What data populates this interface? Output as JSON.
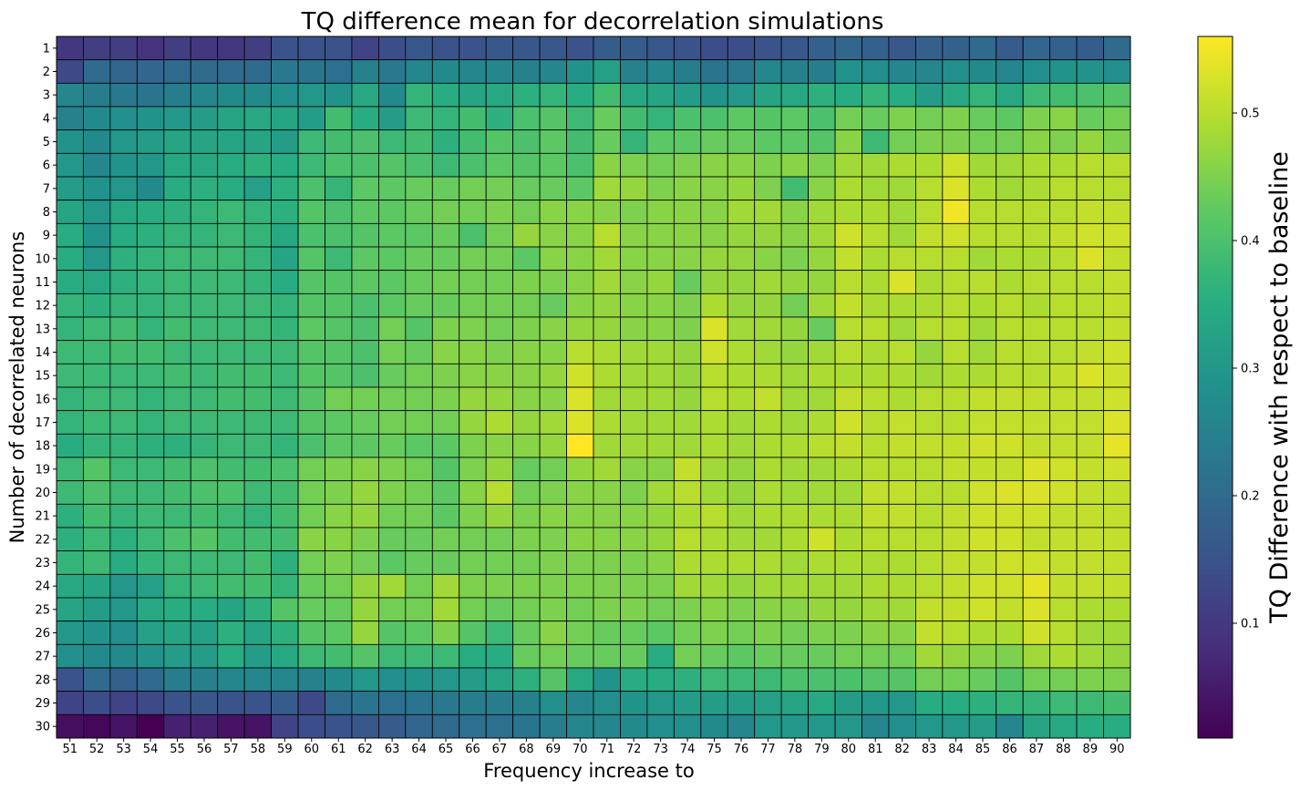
{
  "chart_data": {
    "type": "heatmap",
    "title": "TQ difference mean for decorrelation simulations",
    "xlabel": "Frequency increase to",
    "ylabel": "Number of decorrelated neurons",
    "colorbar_label": "TQ Difference with respect to baseline",
    "colormap": "viridis",
    "clim": [
      0.01,
      0.56
    ],
    "colorbar_ticks": [
      "0.1",
      "0.2",
      "0.3",
      "0.4",
      "0.5"
    ],
    "colorbar_tick_values": [
      0.1,
      0.2,
      0.3,
      0.4,
      0.5
    ],
    "x": [
      51,
      52,
      53,
      54,
      55,
      56,
      57,
      58,
      59,
      60,
      61,
      62,
      63,
      64,
      65,
      66,
      67,
      68,
      69,
      70,
      71,
      72,
      73,
      74,
      75,
      76,
      77,
      78,
      79,
      80,
      81,
      82,
      83,
      84,
      85,
      86,
      87,
      88,
      89,
      90
    ],
    "y": [
      1,
      2,
      3,
      4,
      5,
      6,
      7,
      8,
      9,
      10,
      11,
      12,
      13,
      14,
      15,
      16,
      17,
      18,
      19,
      20,
      21,
      22,
      23,
      24,
      25,
      26,
      27,
      28,
      29,
      30
    ],
    "values": [
      [
        0.1,
        0.11,
        0.11,
        0.09,
        0.11,
        0.1,
        0.1,
        0.11,
        0.15,
        0.15,
        0.15,
        0.12,
        0.14,
        0.16,
        0.15,
        0.15,
        0.16,
        0.16,
        0.16,
        0.15,
        0.17,
        0.17,
        0.16,
        0.15,
        0.14,
        0.14,
        0.15,
        0.16,
        0.18,
        0.19,
        0.18,
        0.16,
        0.18,
        0.18,
        0.2,
        0.17,
        0.19,
        0.18,
        0.17,
        0.2
      ],
      [
        0.13,
        0.2,
        0.19,
        0.19,
        0.2,
        0.2,
        0.2,
        0.2,
        0.23,
        0.22,
        0.21,
        0.25,
        0.23,
        0.26,
        0.27,
        0.26,
        0.26,
        0.25,
        0.26,
        0.29,
        0.32,
        0.25,
        0.26,
        0.24,
        0.22,
        0.23,
        0.26,
        0.25,
        0.24,
        0.29,
        0.28,
        0.26,
        0.26,
        0.28,
        0.27,
        0.26,
        0.28,
        0.29,
        0.29,
        0.28
      ],
      [
        0.26,
        0.24,
        0.23,
        0.22,
        0.24,
        0.26,
        0.27,
        0.27,
        0.28,
        0.3,
        0.29,
        0.34,
        0.27,
        0.37,
        0.35,
        0.33,
        0.34,
        0.36,
        0.37,
        0.35,
        0.39,
        0.34,
        0.33,
        0.31,
        0.29,
        0.3,
        0.33,
        0.34,
        0.36,
        0.35,
        0.37,
        0.35,
        0.31,
        0.34,
        0.37,
        0.34,
        0.38,
        0.39,
        0.4,
        0.41
      ],
      [
        0.25,
        0.27,
        0.28,
        0.29,
        0.3,
        0.31,
        0.33,
        0.34,
        0.33,
        0.31,
        0.39,
        0.35,
        0.31,
        0.38,
        0.37,
        0.39,
        0.36,
        0.4,
        0.41,
        0.38,
        0.43,
        0.39,
        0.37,
        0.4,
        0.4,
        0.42,
        0.41,
        0.42,
        0.4,
        0.44,
        0.43,
        0.45,
        0.44,
        0.45,
        0.43,
        0.42,
        0.45,
        0.46,
        0.43,
        0.44
      ],
      [
        0.29,
        0.27,
        0.3,
        0.31,
        0.33,
        0.33,
        0.33,
        0.33,
        0.31,
        0.38,
        0.39,
        0.4,
        0.38,
        0.39,
        0.36,
        0.39,
        0.41,
        0.4,
        0.42,
        0.39,
        0.43,
        0.37,
        0.42,
        0.42,
        0.43,
        0.43,
        0.42,
        0.42,
        0.41,
        0.46,
        0.38,
        0.44,
        0.45,
        0.45,
        0.44,
        0.44,
        0.46,
        0.45,
        0.47,
        0.45
      ],
      [
        0.3,
        0.26,
        0.29,
        0.3,
        0.34,
        0.34,
        0.35,
        0.36,
        0.35,
        0.38,
        0.4,
        0.4,
        0.41,
        0.4,
        0.38,
        0.4,
        0.42,
        0.41,
        0.42,
        0.4,
        0.46,
        0.45,
        0.44,
        0.45,
        0.46,
        0.46,
        0.45,
        0.46,
        0.45,
        0.48,
        0.48,
        0.49,
        0.49,
        0.52,
        0.48,
        0.48,
        0.49,
        0.49,
        0.5,
        0.5
      ],
      [
        0.31,
        0.29,
        0.3,
        0.27,
        0.35,
        0.36,
        0.35,
        0.32,
        0.36,
        0.4,
        0.37,
        0.42,
        0.42,
        0.43,
        0.43,
        0.44,
        0.44,
        0.43,
        0.43,
        0.42,
        0.48,
        0.47,
        0.45,
        0.46,
        0.46,
        0.47,
        0.45,
        0.39,
        0.46,
        0.49,
        0.48,
        0.48,
        0.5,
        0.53,
        0.49,
        0.48,
        0.49,
        0.5,
        0.5,
        0.5
      ],
      [
        0.33,
        0.3,
        0.34,
        0.35,
        0.36,
        0.37,
        0.38,
        0.37,
        0.36,
        0.41,
        0.4,
        0.42,
        0.42,
        0.43,
        0.44,
        0.44,
        0.45,
        0.44,
        0.46,
        0.46,
        0.46,
        0.45,
        0.46,
        0.46,
        0.46,
        0.48,
        0.48,
        0.46,
        0.48,
        0.49,
        0.49,
        0.48,
        0.5,
        0.55,
        0.5,
        0.5,
        0.5,
        0.5,
        0.51,
        0.51
      ],
      [
        0.35,
        0.29,
        0.35,
        0.36,
        0.37,
        0.37,
        0.38,
        0.37,
        0.34,
        0.4,
        0.4,
        0.41,
        0.42,
        0.42,
        0.43,
        0.4,
        0.44,
        0.47,
        0.46,
        0.46,
        0.5,
        0.46,
        0.46,
        0.46,
        0.46,
        0.47,
        0.47,
        0.46,
        0.48,
        0.52,
        0.5,
        0.48,
        0.51,
        0.52,
        0.5,
        0.5,
        0.5,
        0.51,
        0.52,
        0.52
      ],
      [
        0.35,
        0.3,
        0.36,
        0.37,
        0.38,
        0.38,
        0.38,
        0.37,
        0.33,
        0.41,
        0.38,
        0.42,
        0.42,
        0.43,
        0.43,
        0.44,
        0.44,
        0.42,
        0.46,
        0.46,
        0.48,
        0.46,
        0.46,
        0.46,
        0.47,
        0.47,
        0.46,
        0.45,
        0.47,
        0.51,
        0.49,
        0.5,
        0.5,
        0.5,
        0.48,
        0.49,
        0.49,
        0.5,
        0.53,
        0.51
      ],
      [
        0.35,
        0.34,
        0.36,
        0.37,
        0.38,
        0.38,
        0.38,
        0.37,
        0.35,
        0.41,
        0.41,
        0.42,
        0.42,
        0.43,
        0.44,
        0.44,
        0.44,
        0.45,
        0.45,
        0.46,
        0.48,
        0.46,
        0.47,
        0.43,
        0.47,
        0.47,
        0.48,
        0.47,
        0.47,
        0.5,
        0.49,
        0.53,
        0.49,
        0.5,
        0.5,
        0.49,
        0.5,
        0.5,
        0.5,
        0.51
      ],
      [
        0.37,
        0.36,
        0.37,
        0.37,
        0.38,
        0.38,
        0.38,
        0.38,
        0.37,
        0.41,
        0.41,
        0.4,
        0.42,
        0.43,
        0.43,
        0.44,
        0.44,
        0.44,
        0.43,
        0.46,
        0.47,
        0.46,
        0.46,
        0.45,
        0.49,
        0.47,
        0.47,
        0.44,
        0.48,
        0.51,
        0.49,
        0.49,
        0.49,
        0.5,
        0.49,
        0.5,
        0.49,
        0.5,
        0.5,
        0.51
      ],
      [
        0.37,
        0.38,
        0.39,
        0.37,
        0.39,
        0.38,
        0.38,
        0.38,
        0.37,
        0.42,
        0.41,
        0.4,
        0.44,
        0.41,
        0.45,
        0.45,
        0.44,
        0.45,
        0.46,
        0.47,
        0.47,
        0.46,
        0.46,
        0.45,
        0.53,
        0.48,
        0.48,
        0.47,
        0.43,
        0.5,
        0.5,
        0.48,
        0.5,
        0.5,
        0.48,
        0.5,
        0.5,
        0.5,
        0.5,
        0.51
      ],
      [
        0.38,
        0.38,
        0.39,
        0.39,
        0.38,
        0.38,
        0.38,
        0.38,
        0.38,
        0.41,
        0.41,
        0.4,
        0.44,
        0.43,
        0.46,
        0.46,
        0.45,
        0.46,
        0.46,
        0.5,
        0.49,
        0.48,
        0.48,
        0.47,
        0.52,
        0.49,
        0.48,
        0.47,
        0.48,
        0.5,
        0.49,
        0.5,
        0.47,
        0.5,
        0.48,
        0.5,
        0.5,
        0.5,
        0.51,
        0.52
      ],
      [
        0.38,
        0.38,
        0.38,
        0.38,
        0.39,
        0.38,
        0.39,
        0.39,
        0.38,
        0.41,
        0.41,
        0.4,
        0.43,
        0.44,
        0.45,
        0.46,
        0.46,
        0.46,
        0.47,
        0.52,
        0.49,
        0.48,
        0.48,
        0.47,
        0.5,
        0.49,
        0.49,
        0.48,
        0.49,
        0.49,
        0.49,
        0.49,
        0.48,
        0.49,
        0.49,
        0.5,
        0.5,
        0.51,
        0.53,
        0.52
      ],
      [
        0.37,
        0.38,
        0.38,
        0.37,
        0.38,
        0.38,
        0.39,
        0.39,
        0.38,
        0.41,
        0.44,
        0.44,
        0.44,
        0.44,
        0.45,
        0.47,
        0.47,
        0.46,
        0.46,
        0.53,
        0.48,
        0.48,
        0.48,
        0.47,
        0.5,
        0.49,
        0.51,
        0.48,
        0.48,
        0.51,
        0.5,
        0.49,
        0.5,
        0.5,
        0.51,
        0.51,
        0.51,
        0.51,
        0.51,
        0.52
      ],
      [
        0.37,
        0.38,
        0.38,
        0.37,
        0.38,
        0.38,
        0.38,
        0.38,
        0.38,
        0.41,
        0.42,
        0.43,
        0.44,
        0.44,
        0.44,
        0.47,
        0.49,
        0.47,
        0.48,
        0.53,
        0.49,
        0.48,
        0.48,
        0.48,
        0.49,
        0.48,
        0.49,
        0.48,
        0.49,
        0.52,
        0.5,
        0.51,
        0.5,
        0.5,
        0.51,
        0.51,
        0.51,
        0.51,
        0.51,
        0.53
      ],
      [
        0.35,
        0.37,
        0.37,
        0.36,
        0.36,
        0.37,
        0.38,
        0.38,
        0.37,
        0.4,
        0.42,
        0.42,
        0.43,
        0.42,
        0.42,
        0.45,
        0.46,
        0.46,
        0.47,
        0.56,
        0.48,
        0.48,
        0.48,
        0.48,
        0.49,
        0.48,
        0.49,
        0.49,
        0.5,
        0.51,
        0.5,
        0.51,
        0.51,
        0.51,
        0.52,
        0.52,
        0.51,
        0.51,
        0.51,
        0.54
      ],
      [
        0.38,
        0.41,
        0.38,
        0.38,
        0.39,
        0.4,
        0.39,
        0.39,
        0.4,
        0.44,
        0.45,
        0.46,
        0.45,
        0.44,
        0.41,
        0.45,
        0.47,
        0.43,
        0.44,
        0.47,
        0.48,
        0.46,
        0.46,
        0.51,
        0.48,
        0.47,
        0.49,
        0.48,
        0.48,
        0.49,
        0.5,
        0.5,
        0.5,
        0.51,
        0.51,
        0.51,
        0.53,
        0.52,
        0.51,
        0.52
      ],
      [
        0.38,
        0.4,
        0.38,
        0.38,
        0.39,
        0.4,
        0.4,
        0.38,
        0.39,
        0.44,
        0.45,
        0.47,
        0.45,
        0.44,
        0.42,
        0.46,
        0.5,
        0.44,
        0.45,
        0.46,
        0.46,
        0.45,
        0.48,
        0.5,
        0.48,
        0.47,
        0.49,
        0.48,
        0.48,
        0.48,
        0.51,
        0.51,
        0.5,
        0.5,
        0.52,
        0.53,
        0.53,
        0.52,
        0.51,
        0.51
      ],
      [
        0.36,
        0.39,
        0.37,
        0.38,
        0.38,
        0.39,
        0.38,
        0.37,
        0.39,
        0.44,
        0.46,
        0.47,
        0.44,
        0.44,
        0.42,
        0.45,
        0.47,
        0.45,
        0.46,
        0.46,
        0.46,
        0.46,
        0.47,
        0.49,
        0.5,
        0.48,
        0.49,
        0.49,
        0.49,
        0.49,
        0.51,
        0.51,
        0.5,
        0.51,
        0.52,
        0.52,
        0.52,
        0.51,
        0.51,
        0.51
      ],
      [
        0.36,
        0.38,
        0.36,
        0.38,
        0.4,
        0.41,
        0.39,
        0.39,
        0.39,
        0.46,
        0.46,
        0.45,
        0.43,
        0.43,
        0.44,
        0.44,
        0.44,
        0.45,
        0.45,
        0.46,
        0.46,
        0.46,
        0.47,
        0.5,
        0.49,
        0.48,
        0.48,
        0.49,
        0.52,
        0.49,
        0.5,
        0.5,
        0.5,
        0.51,
        0.52,
        0.52,
        0.51,
        0.51,
        0.51,
        0.51
      ],
      [
        0.37,
        0.38,
        0.35,
        0.37,
        0.38,
        0.38,
        0.38,
        0.39,
        0.36,
        0.44,
        0.45,
        0.44,
        0.42,
        0.43,
        0.43,
        0.44,
        0.44,
        0.44,
        0.45,
        0.45,
        0.45,
        0.45,
        0.46,
        0.49,
        0.49,
        0.49,
        0.49,
        0.48,
        0.49,
        0.49,
        0.49,
        0.49,
        0.5,
        0.51,
        0.51,
        0.52,
        0.52,
        0.51,
        0.51,
        0.51
      ],
      [
        0.34,
        0.33,
        0.3,
        0.32,
        0.37,
        0.38,
        0.39,
        0.39,
        0.37,
        0.43,
        0.44,
        0.47,
        0.48,
        0.44,
        0.48,
        0.45,
        0.45,
        0.45,
        0.45,
        0.45,
        0.45,
        0.45,
        0.45,
        0.48,
        0.48,
        0.47,
        0.48,
        0.48,
        0.48,
        0.48,
        0.49,
        0.49,
        0.5,
        0.51,
        0.52,
        0.52,
        0.54,
        0.51,
        0.51,
        0.51
      ],
      [
        0.33,
        0.31,
        0.3,
        0.34,
        0.35,
        0.35,
        0.33,
        0.36,
        0.41,
        0.43,
        0.43,
        0.47,
        0.44,
        0.44,
        0.48,
        0.44,
        0.43,
        0.44,
        0.45,
        0.44,
        0.45,
        0.45,
        0.44,
        0.45,
        0.46,
        0.45,
        0.46,
        0.46,
        0.47,
        0.47,
        0.48,
        0.48,
        0.51,
        0.51,
        0.52,
        0.51,
        0.53,
        0.5,
        0.49,
        0.49
      ],
      [
        0.3,
        0.29,
        0.28,
        0.32,
        0.33,
        0.32,
        0.36,
        0.33,
        0.36,
        0.41,
        0.42,
        0.47,
        0.41,
        0.42,
        0.45,
        0.41,
        0.38,
        0.43,
        0.46,
        0.44,
        0.43,
        0.43,
        0.42,
        0.44,
        0.45,
        0.44,
        0.45,
        0.44,
        0.45,
        0.45,
        0.46,
        0.46,
        0.51,
        0.5,
        0.49,
        0.49,
        0.52,
        0.5,
        0.48,
        0.48
      ],
      [
        0.28,
        0.27,
        0.27,
        0.29,
        0.31,
        0.31,
        0.35,
        0.31,
        0.34,
        0.38,
        0.39,
        0.41,
        0.38,
        0.38,
        0.38,
        0.35,
        0.35,
        0.43,
        0.44,
        0.43,
        0.43,
        0.43,
        0.35,
        0.44,
        0.43,
        0.42,
        0.43,
        0.43,
        0.43,
        0.44,
        0.44,
        0.44,
        0.48,
        0.47,
        0.46,
        0.45,
        0.48,
        0.49,
        0.48,
        0.47
      ],
      [
        0.15,
        0.2,
        0.18,
        0.2,
        0.24,
        0.25,
        0.26,
        0.26,
        0.26,
        0.25,
        0.27,
        0.3,
        0.28,
        0.29,
        0.3,
        0.31,
        0.33,
        0.36,
        0.41,
        0.34,
        0.29,
        0.35,
        0.35,
        0.36,
        0.38,
        0.38,
        0.38,
        0.4,
        0.4,
        0.4,
        0.41,
        0.41,
        0.44,
        0.44,
        0.43,
        0.41,
        0.44,
        0.44,
        0.45,
        0.45
      ],
      [
        0.12,
        0.14,
        0.12,
        0.13,
        0.15,
        0.16,
        0.15,
        0.15,
        0.17,
        0.13,
        0.2,
        0.22,
        0.21,
        0.22,
        0.23,
        0.24,
        0.24,
        0.25,
        0.28,
        0.26,
        0.28,
        0.29,
        0.3,
        0.31,
        0.31,
        0.31,
        0.32,
        0.33,
        0.34,
        0.31,
        0.3,
        0.3,
        0.35,
        0.35,
        0.36,
        0.37,
        0.37,
        0.38,
        0.38,
        0.39
      ],
      [
        0.03,
        0.02,
        0.04,
        0.01,
        0.06,
        0.06,
        0.04,
        0.04,
        0.12,
        0.14,
        0.15,
        0.16,
        0.17,
        0.19,
        0.2,
        0.21,
        0.21,
        0.22,
        0.24,
        0.26,
        0.26,
        0.27,
        0.28,
        0.28,
        0.27,
        0.26,
        0.3,
        0.3,
        0.3,
        0.3,
        0.26,
        0.28,
        0.3,
        0.3,
        0.31,
        0.26,
        0.33,
        0.34,
        0.35,
        0.35
      ]
    ]
  }
}
